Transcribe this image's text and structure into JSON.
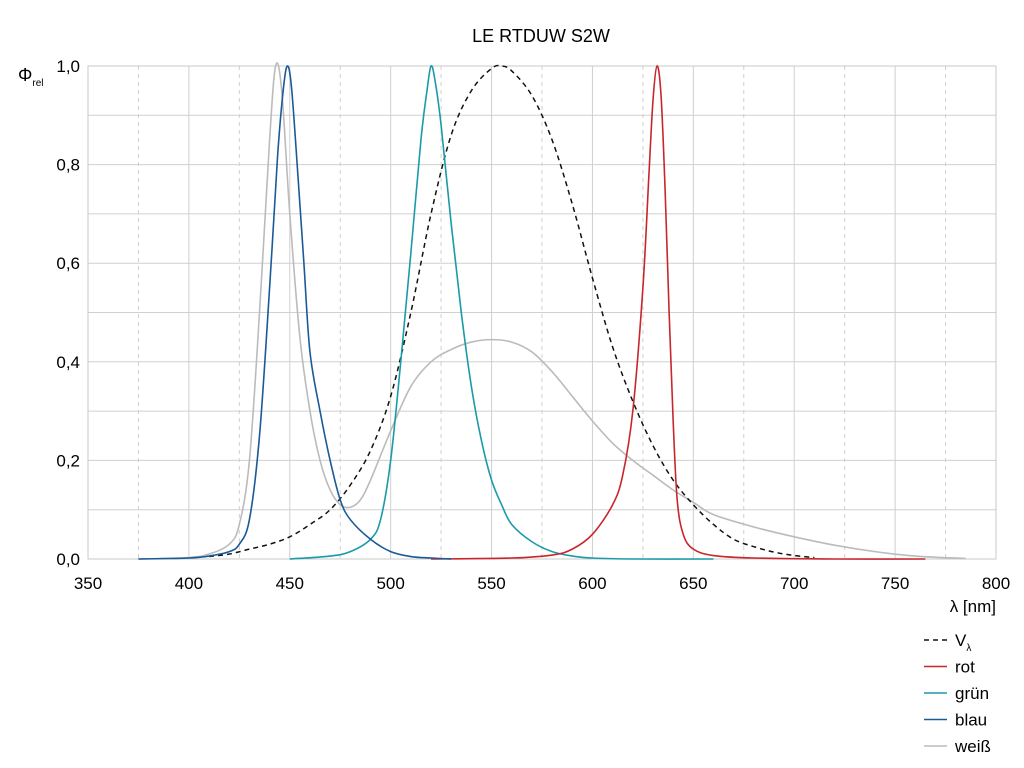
{
  "chart_data": {
    "type": "line",
    "title": "LE RTDUW S2W",
    "ylabel_symbol": "Φ",
    "ylabel_sub": "rel",
    "xlabel": "λ [nm]",
    "xlim": [
      350,
      800
    ],
    "ylim": [
      0,
      1.0
    ],
    "xticks": [
      350,
      400,
      450,
      500,
      550,
      600,
      650,
      700,
      750,
      800
    ],
    "xtick_labels": [
      "350",
      "400",
      "450",
      "500",
      "550",
      "600",
      "650",
      "700",
      "750",
      "800"
    ],
    "yticks": [
      0,
      0.2,
      0.4,
      0.6,
      0.8,
      1.0
    ],
    "ytick_labels": [
      "0,0",
      "0,2",
      "0,4",
      "0,6",
      "0,8",
      "1,0"
    ],
    "grid": "on",
    "legend_position": "bottom-right",
    "series": [
      {
        "name": "V",
        "name_sub": "λ",
        "color": "#111111",
        "dash": true,
        "points": [
          [
            410,
            0.005
          ],
          [
            420,
            0.01
          ],
          [
            430,
            0.02
          ],
          [
            440,
            0.03
          ],
          [
            450,
            0.045
          ],
          [
            460,
            0.07
          ],
          [
            470,
            0.1
          ],
          [
            480,
            0.15
          ],
          [
            490,
            0.22
          ],
          [
            500,
            0.33
          ],
          [
            510,
            0.5
          ],
          [
            520,
            0.7
          ],
          [
            530,
            0.86
          ],
          [
            540,
            0.95
          ],
          [
            550,
            0.995
          ],
          [
            555,
            1.0
          ],
          [
            560,
            0.99
          ],
          [
            570,
            0.94
          ],
          [
            580,
            0.85
          ],
          [
            590,
            0.72
          ],
          [
            600,
            0.57
          ],
          [
            610,
            0.43
          ],
          [
            620,
            0.32
          ],
          [
            630,
            0.23
          ],
          [
            640,
            0.16
          ],
          [
            650,
            0.11
          ],
          [
            660,
            0.07
          ],
          [
            670,
            0.04
          ],
          [
            680,
            0.025
          ],
          [
            690,
            0.014
          ],
          [
            700,
            0.007
          ],
          [
            710,
            0.003
          ]
        ]
      },
      {
        "name": "rot",
        "color": "#c8262b",
        "dash": false,
        "points": [
          [
            520,
            0.0
          ],
          [
            560,
            0.002
          ],
          [
            580,
            0.008
          ],
          [
            590,
            0.02
          ],
          [
            600,
            0.05
          ],
          [
            610,
            0.11
          ],
          [
            615,
            0.17
          ],
          [
            620,
            0.3
          ],
          [
            625,
            0.55
          ],
          [
            628,
            0.78
          ],
          [
            630,
            0.93
          ],
          [
            632,
            1.0
          ],
          [
            634,
            0.94
          ],
          [
            636,
            0.75
          ],
          [
            638,
            0.5
          ],
          [
            640,
            0.28
          ],
          [
            642,
            0.12
          ],
          [
            645,
            0.05
          ],
          [
            650,
            0.02
          ],
          [
            660,
            0.007
          ],
          [
            680,
            0.002
          ],
          [
            720,
            0.0
          ],
          [
            765,
            0.0
          ]
        ]
      },
      {
        "name": "grün",
        "color": "#1a9aaa",
        "dash": false,
        "points": [
          [
            450,
            0.0
          ],
          [
            470,
            0.006
          ],
          [
            480,
            0.015
          ],
          [
            490,
            0.04
          ],
          [
            495,
            0.08
          ],
          [
            500,
            0.2
          ],
          [
            505,
            0.4
          ],
          [
            510,
            0.62
          ],
          [
            515,
            0.85
          ],
          [
            518,
            0.95
          ],
          [
            520,
            1.0
          ],
          [
            522,
            0.97
          ],
          [
            525,
            0.88
          ],
          [
            530,
            0.68
          ],
          [
            535,
            0.5
          ],
          [
            540,
            0.35
          ],
          [
            545,
            0.24
          ],
          [
            550,
            0.16
          ],
          [
            555,
            0.11
          ],
          [
            560,
            0.07
          ],
          [
            570,
            0.035
          ],
          [
            580,
            0.015
          ],
          [
            590,
            0.006
          ],
          [
            600,
            0.002
          ],
          [
            620,
            0.0
          ],
          [
            660,
            0.0
          ]
        ]
      },
      {
        "name": "blau",
        "color": "#1a5a96",
        "dash": false,
        "points": [
          [
            375,
            0.0
          ],
          [
            390,
            0.001
          ],
          [
            400,
            0.002
          ],
          [
            410,
            0.006
          ],
          [
            420,
            0.015
          ],
          [
            425,
            0.03
          ],
          [
            430,
            0.08
          ],
          [
            435,
            0.25
          ],
          [
            440,
            0.55
          ],
          [
            444,
            0.82
          ],
          [
            447,
            0.96
          ],
          [
            449,
            1.0
          ],
          [
            451,
            0.95
          ],
          [
            454,
            0.78
          ],
          [
            457,
            0.6
          ],
          [
            460,
            0.42
          ],
          [
            465,
            0.3
          ],
          [
            470,
            0.2
          ],
          [
            475,
            0.12
          ],
          [
            480,
            0.08
          ],
          [
            490,
            0.04
          ],
          [
            500,
            0.015
          ],
          [
            510,
            0.005
          ],
          [
            520,
            0.002
          ],
          [
            530,
            0.0
          ]
        ]
      },
      {
        "name": "weiß",
        "color": "#bbbbbb",
        "dash": false,
        "points": [
          [
            375,
            0.0
          ],
          [
            400,
            0.003
          ],
          [
            410,
            0.01
          ],
          [
            420,
            0.03
          ],
          [
            425,
            0.07
          ],
          [
            430,
            0.2
          ],
          [
            435,
            0.5
          ],
          [
            440,
            0.85
          ],
          [
            443,
            1.0
          ],
          [
            446,
            0.95
          ],
          [
            450,
            0.7
          ],
          [
            455,
            0.45
          ],
          [
            460,
            0.3
          ],
          [
            465,
            0.2
          ],
          [
            470,
            0.14
          ],
          [
            475,
            0.11
          ],
          [
            480,
            0.105
          ],
          [
            485,
            0.12
          ],
          [
            490,
            0.16
          ],
          [
            500,
            0.26
          ],
          [
            510,
            0.35
          ],
          [
            520,
            0.4
          ],
          [
            530,
            0.425
          ],
          [
            540,
            0.44
          ],
          [
            550,
            0.445
          ],
          [
            560,
            0.44
          ],
          [
            570,
            0.42
          ],
          [
            580,
            0.38
          ],
          [
            590,
            0.33
          ],
          [
            600,
            0.28
          ],
          [
            610,
            0.235
          ],
          [
            620,
            0.2
          ],
          [
            630,
            0.17
          ],
          [
            640,
            0.14
          ],
          [
            650,
            0.115
          ],
          [
            660,
            0.09
          ],
          [
            680,
            0.065
          ],
          [
            700,
            0.045
          ],
          [
            720,
            0.028
          ],
          [
            740,
            0.015
          ],
          [
            760,
            0.006
          ],
          [
            785,
            0.001
          ]
        ]
      }
    ]
  }
}
